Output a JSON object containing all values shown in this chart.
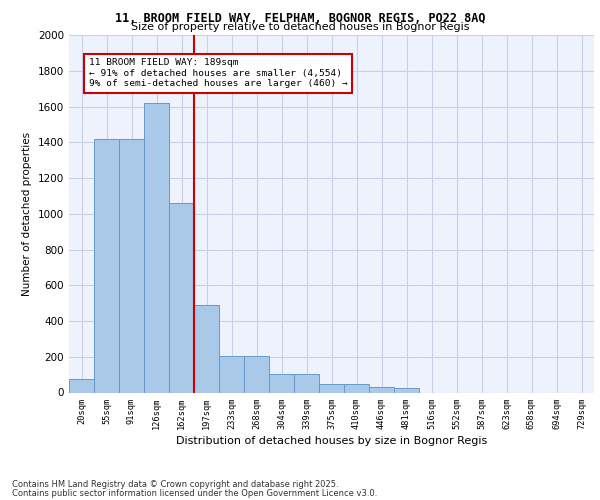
{
  "title1": "11, BROOM FIELD WAY, FELPHAM, BOGNOR REGIS, PO22 8AQ",
  "title2": "Size of property relative to detached houses in Bognor Regis",
  "xlabel": "Distribution of detached houses by size in Bognor Regis",
  "ylabel": "Number of detached properties",
  "categories": [
    "20sqm",
    "55sqm",
    "91sqm",
    "126sqm",
    "162sqm",
    "197sqm",
    "233sqm",
    "268sqm",
    "304sqm",
    "339sqm",
    "375sqm",
    "410sqm",
    "446sqm",
    "481sqm",
    "516sqm",
    "552sqm",
    "587sqm",
    "623sqm",
    "658sqm",
    "694sqm",
    "729sqm"
  ],
  "values": [
    75,
    1420,
    1420,
    1620,
    1060,
    490,
    205,
    205,
    105,
    105,
    45,
    45,
    30,
    25,
    0,
    0,
    0,
    0,
    0,
    0,
    0
  ],
  "bar_color": "#aac8e8",
  "bar_edge_color": "#6699cc",
  "vline_color": "#cc0000",
  "annotation_text": "11 BROOM FIELD WAY: 189sqm\n← 91% of detached houses are smaller (4,554)\n9% of semi-detached houses are larger (460) →",
  "annotation_box_color": "#cc0000",
  "footer1": "Contains HM Land Registry data © Crown copyright and database right 2025.",
  "footer2": "Contains public sector information licensed under the Open Government Licence v3.0.",
  "ylim": [
    0,
    2000
  ],
  "yticks": [
    0,
    200,
    400,
    600,
    800,
    1000,
    1200,
    1400,
    1600,
    1800,
    2000
  ],
  "bg_color": "#eef2fc",
  "grid_color": "#c8d0e8"
}
